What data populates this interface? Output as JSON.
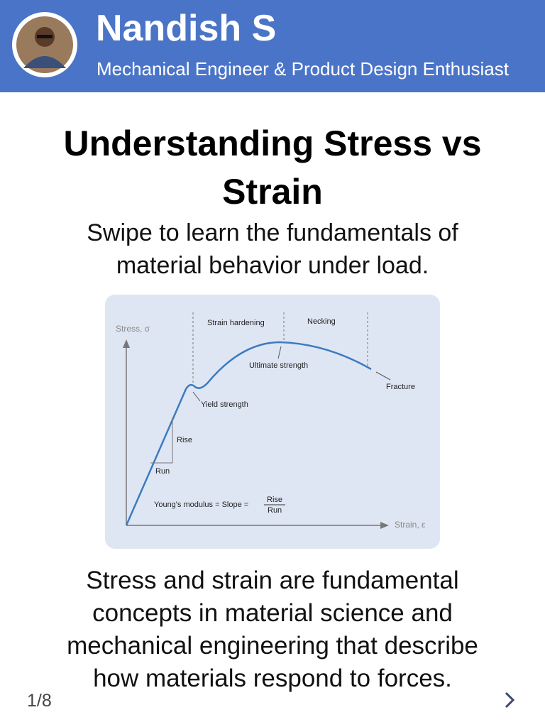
{
  "header": {
    "name": "Nandish S",
    "tagline": "Mechanical Engineer & Product Design Enthusiast"
  },
  "title": "Understanding Stress vs Strain",
  "subtitle": "Swipe to learn the fundamentals of material behavior under load.",
  "diagram": {
    "y_axis": "Stress, σ",
    "x_axis": "Strain, ε",
    "regions": [
      "Strain hardening",
      "Necking"
    ],
    "points": [
      "Ultimate strength",
      "Fracture",
      "Yield strength"
    ],
    "rise": "Rise",
    "run": "Run",
    "formula": "Young's modulus = Slope =",
    "fraction_top": "Rise",
    "fraction_bottom": "Run"
  },
  "body": "Stress and strain are fundamental concepts in material science and mechanical engineering that describe how materials respond to forces.",
  "footer": {
    "page": "1/8"
  }
}
